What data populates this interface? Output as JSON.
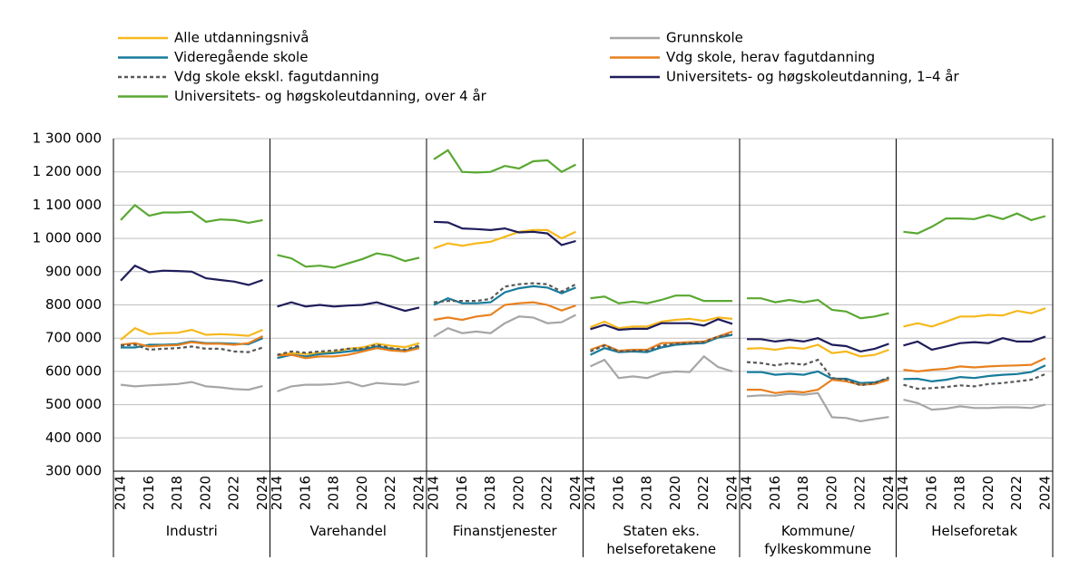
{
  "chart_data": {
    "type": "line",
    "series": [
      {
        "name": "Alle utdanningsnivå",
        "color": "#f6b81c"
      },
      {
        "name": "Grunnskole",
        "color": "#a6a6a6"
      },
      {
        "name": "Videregående skole",
        "color": "#177b9b"
      },
      {
        "name": "Vdg skole, herav fagutdanning",
        "color": "#e8801e"
      },
      {
        "name": "Vdg skole ekskl. fagutdanning",
        "color": "#595959",
        "dashed": true
      },
      {
        "name": "Universitets- og høgskoleutdanning, 1–4 år",
        "color": "#1f1d5a"
      },
      {
        "name": "Universitets- og høgskoleutdanning, over 4 år",
        "color": "#5aa832"
      }
    ],
    "x": [
      2014,
      2015,
      2016,
      2017,
      2018,
      2019,
      2020,
      2021,
      2022,
      2023,
      2024
    ],
    "xticks": [
      2014,
      2016,
      2018,
      2020,
      2022,
      2024
    ],
    "ylim": [
      300000,
      1300000
    ],
    "yticks": [
      {
        "value": 300000,
        "label": "300 000"
      },
      {
        "value": 400000,
        "label": "400 000"
      },
      {
        "value": 500000,
        "label": "500 000"
      },
      {
        "value": 600000,
        "label": "600 000"
      },
      {
        "value": 700000,
        "label": "700 000"
      },
      {
        "value": 800000,
        "label": "800 000"
      },
      {
        "value": 900000,
        "label": "900 000"
      },
      {
        "value": 1000000,
        "label": "1 000 000"
      },
      {
        "value": 1100000,
        "label": "1 100 000"
      },
      {
        "value": 1200000,
        "label": "1 200 000"
      },
      {
        "value": 1300000,
        "label": "1 300 000"
      }
    ],
    "grid": true,
    "groups": [
      {
        "name": "Industri",
        "values": [
          [
            695000,
            730000,
            712000,
            715000,
            716000,
            725000,
            710000,
            712000,
            710000,
            707000,
            725000
          ],
          [
            560000,
            555000,
            558000,
            560000,
            562000,
            568000,
            555000,
            552000,
            547000,
            545000,
            556000
          ],
          [
            672000,
            672000,
            680000,
            680000,
            682000,
            690000,
            685000,
            685000,
            683000,
            682000,
            700000
          ],
          [
            680000,
            685000,
            675000,
            678000,
            679000,
            688000,
            683000,
            683000,
            680000,
            685000,
            706000
          ],
          [
            678000,
            680000,
            665000,
            668000,
            670000,
            675000,
            668000,
            668000,
            660000,
            658000,
            672000
          ],
          [
            873000,
            918000,
            898000,
            903000,
            902000,
            900000,
            880000,
            875000,
            870000,
            860000,
            875000
          ],
          [
            1055000,
            1100000,
            1068000,
            1078000,
            1078000,
            1080000,
            1050000,
            1057000,
            1055000,
            1047000,
            1055000
          ]
        ]
      },
      {
        "name": "Varehandel",
        "values": [
          [
            650000,
            655000,
            652000,
            656000,
            658000,
            668000,
            672000,
            683000,
            677000,
            673000,
            685000
          ],
          [
            540000,
            555000,
            560000,
            560000,
            562000,
            568000,
            555000,
            565000,
            562000,
            560000,
            570000
          ],
          [
            640000,
            650000,
            645000,
            652000,
            655000,
            660000,
            665000,
            675000,
            668000,
            662000,
            675000
          ],
          [
            648000,
            650000,
            640000,
            645000,
            645000,
            650000,
            660000,
            670000,
            663000,
            660000,
            670000
          ],
          [
            650000,
            660000,
            656000,
            660000,
            663000,
            668000,
            668000,
            680000,
            670000,
            665000,
            678000
          ],
          [
            795000,
            808000,
            795000,
            800000,
            795000,
            798000,
            800000,
            808000,
            795000,
            782000,
            792000
          ],
          [
            950000,
            940000,
            915000,
            918000,
            912000,
            925000,
            938000,
            955000,
            948000,
            932000,
            942000
          ]
        ]
      },
      {
        "name": "Finanstjenester",
        "values": [
          [
            970000,
            985000,
            978000,
            985000,
            990000,
            1005000,
            1020000,
            1025000,
            1025000,
            1000000,
            1020000
          ],
          [
            705000,
            730000,
            715000,
            720000,
            715000,
            745000,
            765000,
            762000,
            745000,
            748000,
            770000
          ],
          [
            800000,
            820000,
            805000,
            805000,
            808000,
            838000,
            850000,
            856000,
            852000,
            835000,
            852000
          ],
          [
            755000,
            762000,
            755000,
            765000,
            770000,
            800000,
            805000,
            808000,
            800000,
            783000,
            798000
          ],
          [
            808000,
            812000,
            812000,
            812000,
            818000,
            855000,
            862000,
            865000,
            862000,
            840000,
            862000
          ],
          [
            1050000,
            1048000,
            1030000,
            1028000,
            1025000,
            1030000,
            1018000,
            1020000,
            1015000,
            980000,
            992000
          ],
          [
            1238000,
            1265000,
            1200000,
            1198000,
            1200000,
            1218000,
            1210000,
            1232000,
            1235000,
            1200000,
            1222000
          ]
        ]
      },
      {
        "name": "Staten eks. helseforetakene",
        "values": [
          [
            733000,
            750000,
            730000,
            735000,
            735000,
            750000,
            755000,
            758000,
            752000,
            762000,
            758000
          ],
          [
            615000,
            635000,
            580000,
            585000,
            580000,
            595000,
            600000,
            598000,
            645000,
            613000,
            600000
          ],
          [
            650000,
            670000,
            658000,
            660000,
            658000,
            672000,
            680000,
            683000,
            685000,
            702000,
            710000
          ],
          [
            665000,
            680000,
            662000,
            665000,
            665000,
            685000,
            686000,
            688000,
            690000,
            705000,
            720000
          ],
          [
            660000,
            678000,
            660000,
            662000,
            662000,
            678000,
            683000,
            685000,
            688000,
            705000,
            712000
          ],
          [
            727000,
            740000,
            725000,
            728000,
            728000,
            745000,
            745000,
            745000,
            738000,
            757000,
            743000
          ],
          [
            820000,
            825000,
            805000,
            810000,
            805000,
            815000,
            828000,
            828000,
            812000,
            812000,
            812000
          ]
        ]
      },
      {
        "name": "Kommune/ fylkeskommune",
        "values": [
          [
            668000,
            670000,
            665000,
            672000,
            668000,
            680000,
            655000,
            660000,
            645000,
            650000,
            665000
          ],
          [
            525000,
            528000,
            527000,
            533000,
            530000,
            535000,
            462000,
            460000,
            450000,
            457000,
            463000
          ],
          [
            598000,
            598000,
            590000,
            593000,
            590000,
            600000,
            578000,
            578000,
            565000,
            567000,
            578000
          ],
          [
            545000,
            545000,
            535000,
            540000,
            537000,
            545000,
            575000,
            570000,
            560000,
            562000,
            575000
          ],
          [
            628000,
            625000,
            618000,
            625000,
            620000,
            635000,
            580000,
            575000,
            558000,
            565000,
            582000
          ],
          [
            697000,
            697000,
            690000,
            695000,
            690000,
            700000,
            680000,
            676000,
            660000,
            668000,
            683000
          ],
          [
            820000,
            820000,
            808000,
            815000,
            808000,
            815000,
            785000,
            780000,
            760000,
            765000,
            775000
          ]
        ]
      },
      {
        "name": "Helseforetak",
        "values": [
          [
            735000,
            745000,
            735000,
            750000,
            765000,
            765000,
            770000,
            768000,
            782000,
            775000,
            790000
          ],
          [
            515000,
            505000,
            485000,
            488000,
            495000,
            490000,
            490000,
            492000,
            492000,
            490000,
            500000
          ],
          [
            577000,
            578000,
            570000,
            575000,
            583000,
            580000,
            586000,
            590000,
            592000,
            598000,
            618000
          ],
          [
            605000,
            600000,
            605000,
            608000,
            615000,
            612000,
            615000,
            617000,
            618000,
            620000,
            640000
          ],
          [
            560000,
            548000,
            550000,
            553000,
            558000,
            555000,
            562000,
            565000,
            570000,
            575000,
            592000
          ],
          [
            678000,
            690000,
            665000,
            675000,
            685000,
            688000,
            685000,
            700000,
            690000,
            690000,
            705000
          ],
          [
            1020000,
            1015000,
            1035000,
            1060000,
            1060000,
            1058000,
            1070000,
            1058000,
            1075000,
            1055000,
            1067000
          ]
        ]
      }
    ]
  }
}
